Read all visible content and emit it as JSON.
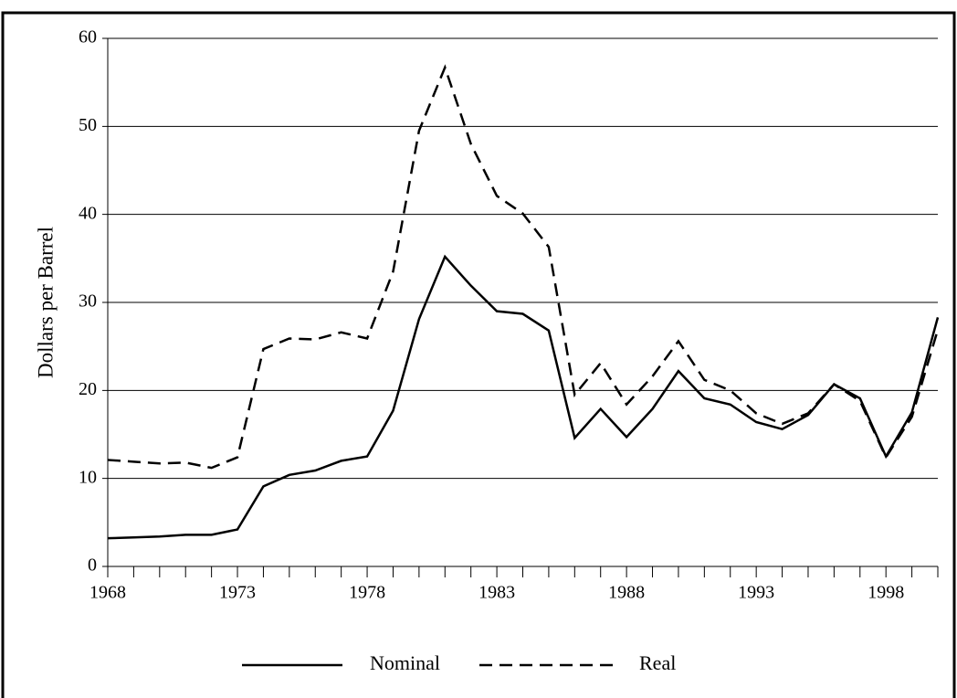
{
  "chart_data": {
    "type": "line",
    "y_label": "Dollars per Barrel",
    "x": [
      1968,
      1969,
      1970,
      1971,
      1972,
      1973,
      1974,
      1975,
      1976,
      1977,
      1978,
      1979,
      1980,
      1981,
      1982,
      1983,
      1984,
      1985,
      1986,
      1987,
      1988,
      1989,
      1990,
      1991,
      1992,
      1993,
      1994,
      1995,
      1996,
      1997,
      1998,
      1999,
      2000
    ],
    "series": [
      {
        "name": "Nominal",
        "color": "#000000",
        "dash": "solid",
        "values": [
          3.2,
          3.3,
          3.4,
          3.6,
          3.6,
          4.2,
          9.1,
          10.4,
          10.9,
          12.0,
          12.5,
          17.7,
          28.1,
          35.2,
          31.9,
          29.0,
          28.7,
          26.8,
          14.6,
          17.9,
          14.7,
          17.9,
          22.2,
          19.1,
          18.4,
          16.4,
          15.6,
          17.2,
          20.7,
          19.1,
          12.5,
          17.5,
          28.3
        ]
      },
      {
        "name": "Real",
        "color": "#000000",
        "dash": "dashed",
        "values": [
          12.1,
          11.9,
          11.7,
          11.8,
          11.2,
          12.4,
          24.7,
          25.9,
          25.8,
          26.6,
          25.9,
          33.5,
          49.5,
          56.7,
          48.0,
          42.1,
          40.1,
          36.3,
          19.5,
          23.1,
          18.4,
          21.6,
          25.6,
          21.2,
          20.0,
          17.4,
          16.2,
          17.4,
          20.7,
          18.8,
          12.4,
          17.0,
          26.9
        ]
      }
    ],
    "xlim": [
      1968,
      2000
    ],
    "xticks": [
      1968,
      1973,
      1978,
      1983,
      1988,
      1993,
      1998
    ],
    "ylim": [
      0,
      60
    ],
    "yticks": [
      0,
      10,
      20,
      30,
      40,
      50,
      60
    ],
    "grid": true,
    "legend": "bottom"
  }
}
